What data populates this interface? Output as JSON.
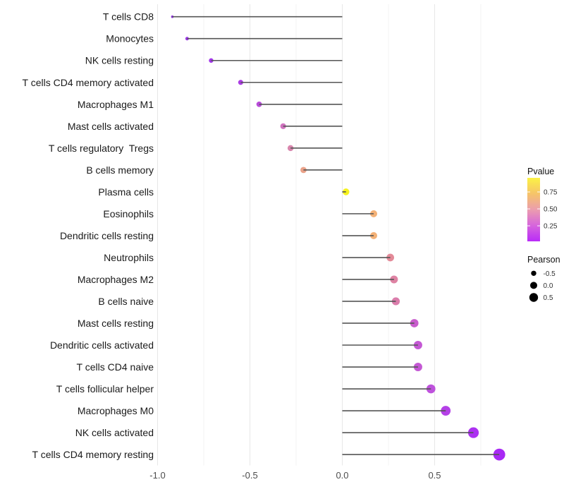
{
  "chart_data": {
    "type": "lollipop",
    "title": "",
    "xlabel": "",
    "ylabel": "",
    "grid": "on",
    "xlim": [
      -1.07,
      0.92
    ],
    "x_ticks": [
      {
        "value": -1.0,
        "label": "-1.0"
      },
      {
        "value": -0.5,
        "label": "-0.5"
      },
      {
        "value": 0.0,
        "label": "0.0"
      },
      {
        "value": 0.5,
        "label": "0.5"
      }
    ],
    "x_minor_ticks": [
      -0.75,
      -0.25,
      0.25,
      0.75
    ],
    "categories": [
      "T cells CD8",
      "Monocytes",
      "NK cells resting",
      "T cells CD4 memory activated",
      "Macrophages M1",
      "Mast cells activated",
      "T cells regulatory  Tregs",
      "B cells memory",
      "Plasma cells",
      "Eosinophils",
      "Dendritic cells resting",
      "Neutrophils",
      "Macrophages M2",
      "B cells naive",
      "Mast cells resting",
      "Dendritic cells activated",
      "T cells CD4 naive",
      "T cells follicular helper",
      "Macrophages M0",
      "NK cells activated",
      "T cells CD4 memory resting"
    ],
    "points": [
      {
        "label": "T cells CD8",
        "pearson": -0.92,
        "pvalue_approx": 0.001,
        "color": "#8A28DE",
        "diameter": 3.6
      },
      {
        "label": "Monocytes",
        "pearson": -0.84,
        "pvalue_approx": 0.005,
        "color": "#9529E6",
        "diameter": 5.0
      },
      {
        "label": "NK cells resting",
        "pearson": -0.71,
        "pvalue_approx": 0.02,
        "color": "#9D2BE9",
        "diameter": 6.4
      },
      {
        "label": "T cells CD4 memory activated",
        "pearson": -0.55,
        "pvalue_approx": 0.06,
        "color": "#A733E2",
        "diameter": 7.2
      },
      {
        "label": "Macrophages M1",
        "pearson": -0.45,
        "pvalue_approx": 0.12,
        "color": "#B441D7",
        "diameter": 7.8
      },
      {
        "label": "Mast cells activated",
        "pearson": -0.32,
        "pvalue_approx": 0.27,
        "color": "#CE6BBC",
        "diameter": 8.2
      },
      {
        "label": "T cells regulatory  Tregs",
        "pearson": -0.28,
        "pvalue_approx": 0.36,
        "color": "#D67FA9",
        "diameter": 8.5
      },
      {
        "label": "B cells memory",
        "pearson": -0.21,
        "pvalue_approx": 0.52,
        "color": "#E99D83",
        "diameter": 8.8
      },
      {
        "label": "Plasma cells",
        "pearson": 0.02,
        "pvalue_approx": 0.93,
        "color": "#F4F112",
        "diameter": 9.6
      },
      {
        "label": "Eosinophils",
        "pearson": 0.17,
        "pvalue_approx": 0.57,
        "color": "#F2AD70",
        "diameter": 10.0
      },
      {
        "label": "Dendritic cells resting",
        "pearson": 0.17,
        "pvalue_approx": 0.57,
        "color": "#F2AD70",
        "diameter": 10.0
      },
      {
        "label": "Neutrophils",
        "pearson": 0.26,
        "pvalue_approx": 0.37,
        "color": "#E18492",
        "diameter": 10.8
      },
      {
        "label": "Macrophages M2",
        "pearson": 0.28,
        "pvalue_approx": 0.33,
        "color": "#DC7C9E",
        "diameter": 11.0
      },
      {
        "label": "B cells naive",
        "pearson": 0.29,
        "pvalue_approx": 0.31,
        "color": "#D876A7",
        "diameter": 11.2
      },
      {
        "label": "Mast cells resting",
        "pearson": 0.39,
        "pvalue_approx": 0.19,
        "color": "#C553C9",
        "diameter": 11.8
      },
      {
        "label": "Dendritic cells activated",
        "pearson": 0.41,
        "pvalue_approx": 0.17,
        "color": "#C14FD2",
        "diameter": 12.0
      },
      {
        "label": "T cells CD4 naive",
        "pearson": 0.41,
        "pvalue_approx": 0.17,
        "color": "#C14FD2",
        "diameter": 12.0
      },
      {
        "label": "T cells follicular helper",
        "pearson": 0.48,
        "pvalue_approx": 0.13,
        "color": "#BB49DA",
        "diameter": 12.7
      },
      {
        "label": "Macrophages M0",
        "pearson": 0.56,
        "pvalue_approx": 0.07,
        "color": "#B036E6",
        "diameter": 13.8
      },
      {
        "label": "NK cells activated",
        "pearson": 0.71,
        "pvalue_approx": 0.02,
        "color": "#A826F0",
        "diameter": 15.2
      },
      {
        "label": "T cells CD4 memory resting",
        "pearson": 0.85,
        "pvalue_approx": 0.01,
        "color": "#A31EF3",
        "diameter": 16.8
      }
    ],
    "legend": {
      "pvalue": {
        "title": "Pvalue",
        "ticks": [
          "0.75",
          "0.50",
          "0.25"
        ],
        "gradient_top_to_bottom": [
          "#FBF245",
          "#F6C469",
          "#EB9DAE",
          "#D665DC",
          "#B92BF8"
        ],
        "range": [
          0.0,
          0.96
        ]
      },
      "pearson": {
        "title": "Pearson",
        "dot_color": "#000000",
        "items": [
          {
            "label": "-0.5",
            "diameter": 7.4
          },
          {
            "label": "0.0",
            "diameter": 10.0
          },
          {
            "label": "0.5",
            "diameter": 12.4
          }
        ]
      }
    },
    "style": {
      "stick_color": "#555555",
      "major_grid_color": "#e7e7e7",
      "minor_grid_color": "#f3f3f3",
      "background": "#ffffff"
    }
  }
}
